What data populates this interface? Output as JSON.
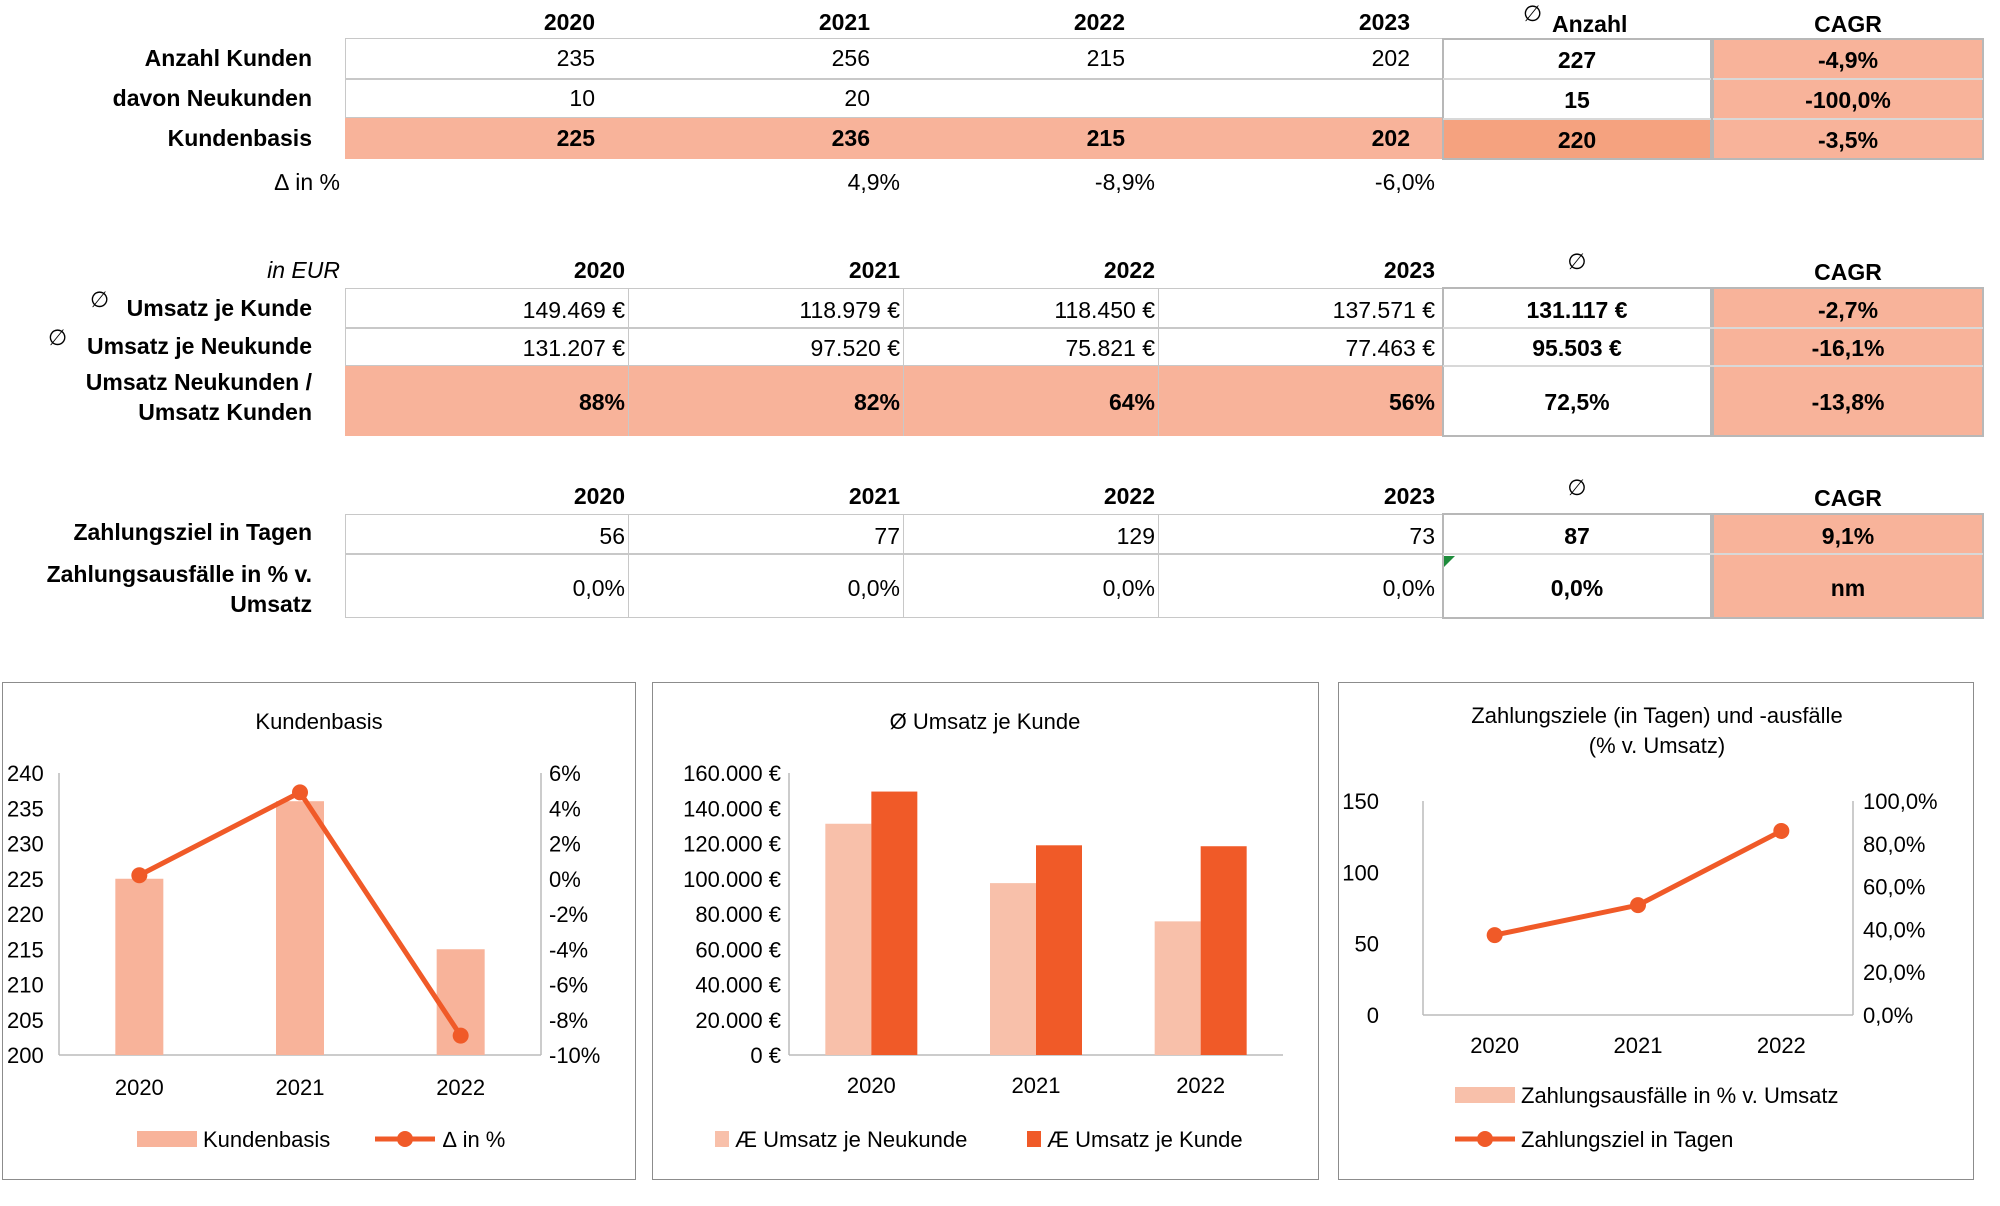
{
  "years": [
    "2020",
    "2021",
    "2022",
    "2023"
  ],
  "diameter": "∅",
  "table1": {
    "col_avg": "Anzahl",
    "col_cagr": "CAGR",
    "rows": [
      {
        "label": "Anzahl Kunden",
        "values": [
          "235",
          "256",
          "215",
          "202"
        ],
        "avg": "227",
        "cagr": "-4,9%"
      },
      {
        "label": "davon Neukunden",
        "values": [
          "10",
          "20",
          "",
          ""
        ],
        "avg": "15",
        "cagr": "-100,0%"
      },
      {
        "label": "Kundenbasis",
        "values": [
          "225",
          "236",
          "215",
          "202"
        ],
        "avg": "220",
        "cagr": "-3,5%"
      }
    ],
    "delta_label": "∆ in %",
    "delta_values": [
      "",
      "4,9%",
      "-8,9%",
      "-6,0%"
    ]
  },
  "table2": {
    "unit": "in EUR",
    "col_cagr": "CAGR",
    "rows": [
      {
        "label": "Umsatz je Kunde",
        "values": [
          "149.469 €",
          "118.979 €",
          "118.450 €",
          "137.571 €"
        ],
        "avg": "131.117 €",
        "cagr": "-2,7%"
      },
      {
        "label": "Umsatz je Neukunde",
        "values": [
          "131.207 €",
          "97.520 €",
          "75.821 €",
          "77.463 €"
        ],
        "avg": "95.503 €",
        "cagr": "-16,1%"
      },
      {
        "label_line1": "Umsatz Neukunden /",
        "label_line2": "Umsatz Kunden",
        "values": [
          "88%",
          "82%",
          "64%",
          "56%"
        ],
        "avg": "72,5%",
        "cagr": "-13,8%"
      }
    ]
  },
  "table3": {
    "col_cagr": "CAGR",
    "rows": [
      {
        "label": "Zahlungsziel in Tagen",
        "values": [
          "56",
          "77",
          "129",
          "73"
        ],
        "avg": "87",
        "cagr": "9,1%"
      },
      {
        "label_line1": "Zahlungsausfälle in % v.",
        "label_line2": "Umsatz",
        "values": [
          "0,0%",
          "0,0%",
          "0,0%",
          "0,0%"
        ],
        "avg": "0,0%",
        "cagr": "nm"
      }
    ]
  },
  "colors": {
    "light": "#f8b39a",
    "medium": "#f5a27f",
    "orange": "#f05a28",
    "pale": "#f8c0aa"
  },
  "chart_data": [
    {
      "type": "bar",
      "title": "Kundenbasis",
      "categories": [
        "2020",
        "2021",
        "2022"
      ],
      "series": [
        {
          "name": "Kundenbasis",
          "type": "bar",
          "axis": "left",
          "values": [
            225,
            236,
            215
          ]
        },
        {
          "name": "∆ in %",
          "type": "line",
          "axis": "right",
          "values": [
            0.2,
            4.9,
            -8.9
          ]
        }
      ],
      "y_left": {
        "min": 200,
        "max": 240,
        "step": 5,
        "ticks": [
          "240",
          "235",
          "230",
          "225",
          "220",
          "215",
          "210",
          "205",
          "200"
        ]
      },
      "y_right": {
        "min": -10,
        "max": 6,
        "step": 2,
        "ticks": [
          "6%",
          "4%",
          "2%",
          "0%",
          "-2%",
          "-4%",
          "-6%",
          "-8%",
          "-10%"
        ]
      },
      "legend": "bottom",
      "legend_labels": [
        "Kundenbasis",
        "∆ in %"
      ]
    },
    {
      "type": "bar",
      "title": "Ø Umsatz je Kunde",
      "categories": [
        "2020",
        "2021",
        "2022"
      ],
      "series": [
        {
          "name": "Æ Umsatz je Neukunde",
          "values": [
            131207,
            97520,
            75821
          ]
        },
        {
          "name": "Æ Umsatz je Kunde",
          "values": [
            149469,
            118979,
            118450
          ]
        }
      ],
      "y": {
        "min": 0,
        "max": 160000,
        "step": 20000,
        "ticks": [
          "160.000 €",
          "140.000 €",
          "120.000 €",
          "100.000 €",
          "80.000 €",
          "60.000 €",
          "40.000 €",
          "20.000 €",
          "0 €"
        ]
      },
      "legend": "bottom",
      "legend_labels": [
        "Æ Umsatz je Neukunde",
        "Æ Umsatz je Kunde"
      ]
    },
    {
      "type": "line",
      "title_line1": "Zahlungsziele  (in Tagen) und -ausfälle",
      "title_line2": "(% v. Umsatz)",
      "categories": [
        "2020",
        "2021",
        "2022"
      ],
      "series": [
        {
          "name": "Zahlungsausfälle in % v. Umsatz",
          "type": "bar",
          "axis": "right",
          "values": [
            0,
            0,
            0
          ]
        },
        {
          "name": "Zahlungsziel in Tagen",
          "type": "line",
          "axis": "left",
          "values": [
            56,
            77,
            129
          ]
        }
      ],
      "y_left": {
        "min": 0,
        "max": 150,
        "step": 50,
        "ticks": [
          "150",
          "100",
          "50",
          "0"
        ]
      },
      "y_right": {
        "min": 0,
        "max": 100,
        "step": 20,
        "ticks": [
          "100,0%",
          "80,0%",
          "60,0%",
          "40,0%",
          "20,0%",
          "0,0%"
        ]
      },
      "legend": "bottom",
      "legend_labels": [
        "Zahlungsausfälle in % v. Umsatz",
        "Zahlungsziel in Tagen"
      ]
    }
  ]
}
